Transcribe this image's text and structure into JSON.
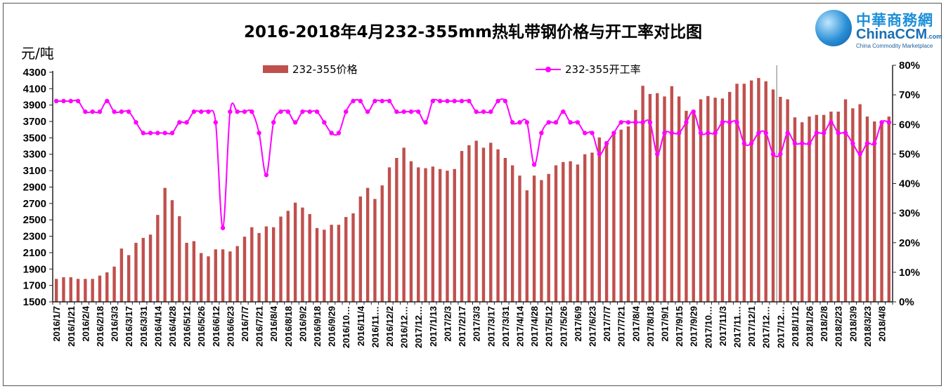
{
  "chart_data": {
    "type": "bar+line",
    "title": "2016-2018年4月232-355mm热轧带钢价格与开工率对比图",
    "ylabel": "元/吨",
    "ylim": [
      1500,
      4385
    ],
    "yticks": [
      1500,
      1700,
      1900,
      2100,
      2300,
      2500,
      2700,
      2900,
      3100,
      3300,
      3500,
      3700,
      3900,
      4100,
      4300
    ],
    "y2lim": [
      0,
      0.8
    ],
    "y2ticks": [
      "0%",
      "10%",
      "20%",
      "30%",
      "40%",
      "50%",
      "60%",
      "70%",
      "80%"
    ],
    "legend_position": "top",
    "grid": false,
    "x_tick_labels": [
      "2016/1/7",
      "2016/1/21",
      "2016/2/4",
      "2016/2/18",
      "2016/3/3",
      "2016/3/17",
      "2016/3/31",
      "2016/4/14",
      "2016/4/28",
      "2016/5/12",
      "2016/5/26",
      "2016/6/12",
      "2016/6/23",
      "2016/7/7",
      "2016/7/21",
      "2016/8/4",
      "2016/8/18",
      "2016/9/2",
      "2016/9/18",
      "2016/9/29",
      "2016/10…",
      "2016/11/4",
      "2016/11…",
      "2016/12/2",
      "2016/12…",
      "2017/12…",
      "2017/1/13",
      "2017/2/3",
      "2017/2/17",
      "2017/3/3",
      "2017/3/17",
      "2017/3/31",
      "2017/4/14",
      "2017/4/28",
      "2017/5/12",
      "2017/5/26",
      "2017/6/9",
      "2017/6/23",
      "2017/7/7",
      "2017/7/21",
      "2017/8/4",
      "2017/8/18",
      "2017/9/1",
      "2017/9/15",
      "2017/9/29",
      "2017/10…",
      "2017/11/3",
      "2017/11…",
      "2017/12/1",
      "2017/12…",
      "2017/12…",
      "2018/1/12",
      "2018/1/26",
      "2018/2/8",
      "2018/2/23",
      "2018/3/9",
      "2018/3/23",
      "2018/4/8"
    ],
    "series": [
      {
        "name": "232-355价格",
        "type": "bar",
        "axis": "left",
        "color": "#c0504d",
        "values": [
          1780,
          1800,
          1800,
          1780,
          1780,
          1780,
          1820,
          1860,
          1930,
          2150,
          2070,
          2220,
          2280,
          2320,
          2560,
          2890,
          2740,
          2545,
          2220,
          2240,
          2095,
          2055,
          2140,
          2140,
          2115,
          2180,
          2295,
          2410,
          2340,
          2420,
          2410,
          2540,
          2610,
          2710,
          2650,
          2570,
          2400,
          2380,
          2440,
          2440,
          2535,
          2580,
          2785,
          2890,
          2755,
          2920,
          3140,
          3255,
          3380,
          3215,
          3140,
          3130,
          3150,
          3120,
          3100,
          3120,
          3340,
          3410,
          3465,
          3380,
          3440,
          3360,
          3255,
          3165,
          3040,
          2860,
          3040,
          2985,
          3060,
          3165,
          3205,
          3215,
          3175,
          3300,
          3320,
          3505,
          3460,
          3545,
          3600,
          3640,
          3840,
          4135,
          4035,
          4045,
          4005,
          4130,
          4005,
          3830,
          3840,
          3970,
          4010,
          3990,
          3980,
          4060,
          4160,
          4160,
          4200,
          4230,
          4190,
          4090,
          4000,
          3970,
          3750,
          3690,
          3760,
          3780,
          3780,
          3820,
          3820,
          3970,
          3860,
          3910,
          3760,
          3700,
          3710,
          3760
        ]
      },
      {
        "name": "232-355开工率",
        "type": "line",
        "axis": "right",
        "color": "#ff00ff",
        "unit": "%",
        "values": [
          67.9,
          67.9,
          67.9,
          67.9,
          64.3,
          64.3,
          64.3,
          67.9,
          64.3,
          64.3,
          64.3,
          60.7,
          57.1,
          57.1,
          57.1,
          57.1,
          57.1,
          60.7,
          60.7,
          64.3,
          64.3,
          64.3,
          60.7,
          25.0,
          64.3,
          64.3,
          64.3,
          64.3,
          57.1,
          42.9,
          60.7,
          64.3,
          64.3,
          60.7,
          64.3,
          64.3,
          64.3,
          60.7,
          57.1,
          57.1,
          64.3,
          67.9,
          67.9,
          64.3,
          67.9,
          67.9,
          67.9,
          64.3,
          64.3,
          64.3,
          64.3,
          60.7,
          67.9,
          67.9,
          67.9,
          67.9,
          67.9,
          67.9,
          64.3,
          64.3,
          64.3,
          67.9,
          67.9,
          60.7,
          60.7,
          60.7,
          46.4,
          57.1,
          60.7,
          60.7,
          64.3,
          60.7,
          60.7,
          57.1,
          57.1,
          50.0,
          53.6,
          57.1,
          60.7,
          60.7,
          60.7,
          60.7,
          60.7,
          50.0,
          57.1,
          57.1,
          57.1,
          60.7,
          64.3,
          57.1,
          57.1,
          57.1,
          60.7,
          60.7,
          60.7,
          53.6,
          53.6,
          57.1,
          57.1,
          50.0,
          50.0,
          57.1,
          53.6,
          53.6,
          53.6,
          57.1,
          57.1,
          60.7,
          57.1,
          57.1,
          53.6,
          50.0,
          53.6,
          53.6,
          60.7,
          60.7
        ]
      }
    ]
  },
  "logo": {
    "cn": "中華商務網",
    "en": "ChinaCCM",
    "en_suffix": ".com",
    "sub": "China Commodity Marketplace"
  }
}
